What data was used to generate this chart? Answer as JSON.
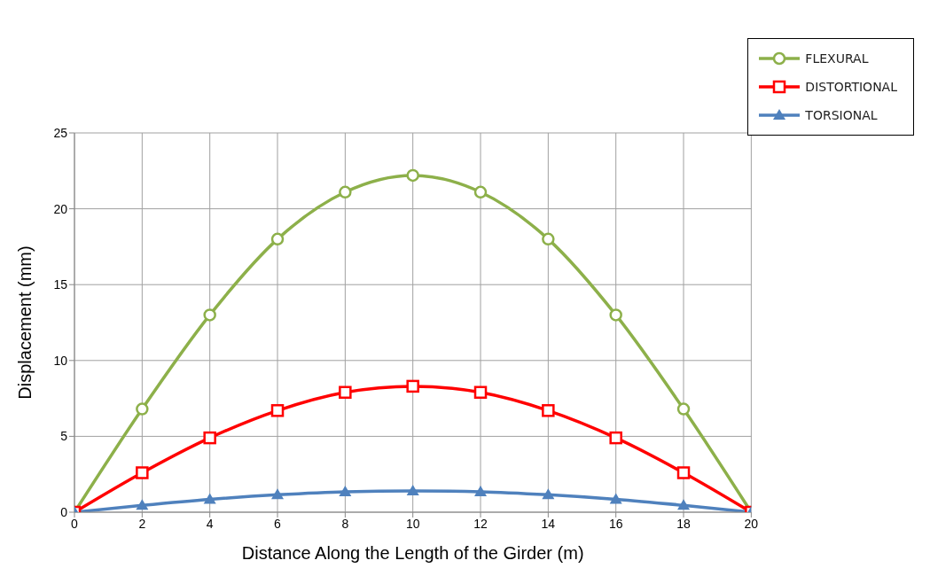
{
  "chart_data": {
    "type": "line",
    "xlabel": "Distance Along the Length of the Girder (m)",
    "ylabel": "Displacement (mm)",
    "x": [
      0,
      2,
      4,
      6,
      8,
      10,
      12,
      14,
      16,
      18,
      20
    ],
    "series": [
      {
        "name": "FLEXURAL",
        "color": "#8db04a",
        "marker": "circle",
        "values": [
          0,
          6.8,
          13,
          18,
          21.1,
          22.2,
          21.1,
          18,
          13,
          6.8,
          0
        ]
      },
      {
        "name": "DISTORTIONAL",
        "color": "#ff0000",
        "marker": "square",
        "values": [
          0,
          2.6,
          4.9,
          6.7,
          7.9,
          8.3,
          7.9,
          6.7,
          4.9,
          2.6,
          0
        ]
      },
      {
        "name": "TORSIONAL",
        "color": "#4f81bd",
        "marker": "triangle",
        "values": [
          0,
          0.45,
          0.85,
          1.15,
          1.35,
          1.4,
          1.35,
          1.15,
          0.85,
          0.45,
          0
        ]
      }
    ],
    "xlim": [
      0,
      20
    ],
    "xticks": [
      0,
      2,
      4,
      6,
      8,
      10,
      12,
      14,
      16,
      18,
      20
    ],
    "ylim": [
      0,
      25
    ],
    "yticks": [
      0,
      5,
      10,
      15,
      20,
      25
    ],
    "grid": true,
    "legend": "top right",
    "line_style": "solid"
  }
}
